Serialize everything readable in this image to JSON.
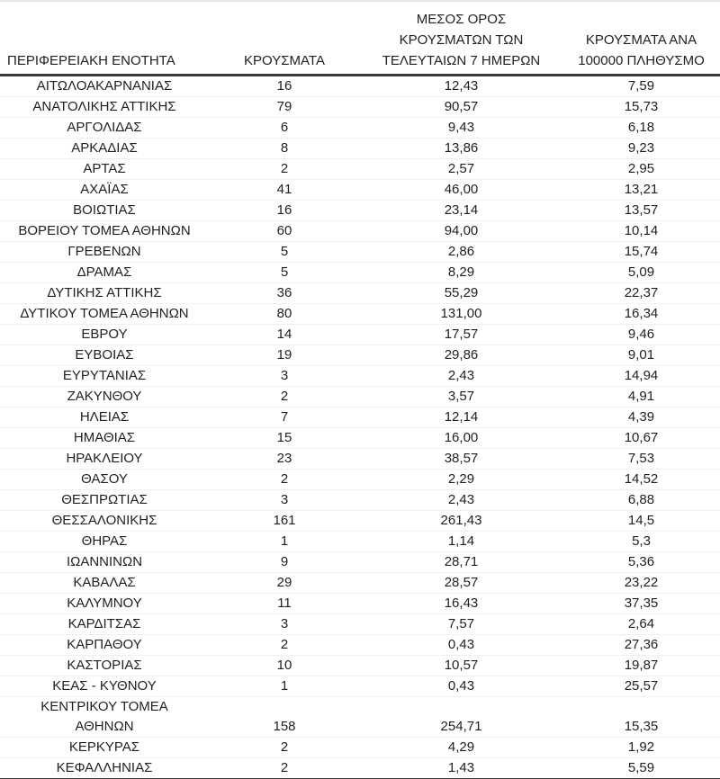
{
  "chart_data": {
    "type": "table",
    "columns": [
      {
        "id": "region",
        "label": "ΠΕΡΙΦΕΡΕΙΑΚΗ ΕΝΟΤΗΤΑ",
        "header_lines": [
          "ΠΕΡΙΦΕΡΕΙΑΚΗ ΕΝΟΤΗΤΑ"
        ]
      },
      {
        "id": "cases",
        "label": "ΚΡΟΥΣΜΑΤΑ",
        "header_lines": [
          "ΚΡΟΥΣΜΑΤΑ"
        ]
      },
      {
        "id": "avg7",
        "label": "ΜΕΣΟΣ ΟΡΟΣ ΚΡΟΥΣΜΑΤΩΝ ΤΩΝ ΤΕΛΕΥΤΑΙΩΝ 7 ΗΜΕΡΩΝ",
        "header_lines": [
          "ΜΕΣΟΣ ΟΡΟΣ",
          "ΚΡΟΥΣΜΑΤΩΝ ΤΩΝ",
          "ΤΕΛΕΥΤΑΙΩΝ 7 ΗΜΕΡΩΝ"
        ]
      },
      {
        "id": "per100k",
        "label": "ΚΡΟΥΣΜΑΤΑ ΑΝΑ 100000 ΠΛΗΘΥΣΜΟ",
        "header_lines": [
          "ΚΡΟΥΣΜΑΤΑ ΑΝΑ",
          "100000 ΠΛΗΘΥΣΜΟ"
        ]
      }
    ],
    "rows": [
      {
        "region": "ΑΙΤΩΛΟΑΚΑΡΝΑΝΙΑΣ",
        "cases": "16",
        "avg7": "12,43",
        "per100k": "7,59"
      },
      {
        "region": "ΑΝΑΤΟΛΙΚΗΣ ΑΤΤΙΚΗΣ",
        "cases": "79",
        "avg7": "90,57",
        "per100k": "15,73"
      },
      {
        "region": "ΑΡΓΟΛΙΔΑΣ",
        "cases": "6",
        "avg7": "9,43",
        "per100k": "6,18"
      },
      {
        "region": "ΑΡΚΑΔΙΑΣ",
        "cases": "8",
        "avg7": "13,86",
        "per100k": "9,23"
      },
      {
        "region": "ΑΡΤΑΣ",
        "cases": "2",
        "avg7": "2,57",
        "per100k": "2,95"
      },
      {
        "region": "ΑΧΑΪΑΣ",
        "cases": "41",
        "avg7": "46,00",
        "per100k": "13,21"
      },
      {
        "region": "ΒΟΙΩΤΙΑΣ",
        "cases": "16",
        "avg7": "23,14",
        "per100k": "13,57"
      },
      {
        "region": "ΒΟΡΕΙΟΥ ΤΟΜΕΑ ΑΘΗΝΩΝ",
        "cases": "60",
        "avg7": "94,00",
        "per100k": "10,14"
      },
      {
        "region": "ΓΡΕΒΕΝΩΝ",
        "cases": "5",
        "avg7": "2,86",
        "per100k": "15,74"
      },
      {
        "region": "ΔΡΑΜΑΣ",
        "cases": "5",
        "avg7": "8,29",
        "per100k": "5,09"
      },
      {
        "region": "ΔΥΤΙΚΗΣ ΑΤΤΙΚΗΣ",
        "cases": "36",
        "avg7": "55,29",
        "per100k": "22,37"
      },
      {
        "region": "ΔΥΤΙΚΟΥ ΤΟΜΕΑ ΑΘΗΝΩΝ",
        "cases": "80",
        "avg7": "131,00",
        "per100k": "16,34"
      },
      {
        "region": "ΕΒΡΟΥ",
        "cases": "14",
        "avg7": "17,57",
        "per100k": "9,46"
      },
      {
        "region": "ΕΥΒΟΙΑΣ",
        "cases": "19",
        "avg7": "29,86",
        "per100k": "9,01"
      },
      {
        "region": "ΕΥΡΥΤΑΝΙΑΣ",
        "cases": "3",
        "avg7": "2,43",
        "per100k": "14,94"
      },
      {
        "region": "ΖΑΚΥΝΘΟΥ",
        "cases": "2",
        "avg7": "3,57",
        "per100k": "4,91"
      },
      {
        "region": "ΗΛΕΙΑΣ",
        "cases": "7",
        "avg7": "12,14",
        "per100k": "4,39"
      },
      {
        "region": "ΗΜΑΘΙΑΣ",
        "cases": "15",
        "avg7": "16,00",
        "per100k": "10,67"
      },
      {
        "region": "ΗΡΑΚΛΕΙΟΥ",
        "cases": "23",
        "avg7": "38,57",
        "per100k": "7,53"
      },
      {
        "region": "ΘΑΣΟΥ",
        "cases": "2",
        "avg7": "2,29",
        "per100k": "14,52"
      },
      {
        "region": "ΘΕΣΠΡΩΤΙΑΣ",
        "cases": "3",
        "avg7": "2,43",
        "per100k": "6,88"
      },
      {
        "region": "ΘΕΣΣΑΛΟΝΙΚΗΣ",
        "cases": "161",
        "avg7": "261,43",
        "per100k": "14,5"
      },
      {
        "region": "ΘΗΡΑΣ",
        "cases": "1",
        "avg7": "1,14",
        "per100k": "5,3"
      },
      {
        "region": "ΙΩΑΝΝΙΝΩΝ",
        "cases": "9",
        "avg7": "28,71",
        "per100k": "5,36"
      },
      {
        "region": "ΚΑΒΑΛΑΣ",
        "cases": "29",
        "avg7": "28,57",
        "per100k": "23,22"
      },
      {
        "region": "ΚΑΛΥΜΝΟΥ",
        "cases": "11",
        "avg7": "16,43",
        "per100k": "37,35"
      },
      {
        "region": "ΚΑΡΔΙΤΣΑΣ",
        "cases": "3",
        "avg7": "7,57",
        "per100k": "2,64"
      },
      {
        "region": "ΚΑΡΠΑΘΟΥ",
        "cases": "2",
        "avg7": "0,43",
        "per100k": "27,36"
      },
      {
        "region": "ΚΑΣΤΟΡΙΑΣ",
        "cases": "10",
        "avg7": "10,57",
        "per100k": "19,87"
      },
      {
        "region": "ΚΕΑΣ - ΚΥΘΝΟΥ",
        "cases": "1",
        "avg7": "0,43",
        "per100k": "25,57"
      },
      {
        "region": "ΚΕΝΤΡΙΚΟΥ ΤΟΜΕΑ ΑΘΗΝΩΝ",
        "region_lines": [
          "ΚΕΝΤΡΙΚΟΥ ΤΟΜΕΑ",
          "ΑΘΗΝΩΝ"
        ],
        "cases": "158",
        "avg7": "254,71",
        "per100k": "15,35"
      },
      {
        "region": "ΚΕΡΚΥΡΑΣ",
        "cases": "2",
        "avg7": "4,29",
        "per100k": "1,92"
      },
      {
        "region": "ΚΕΦΑΛΛΗΝΙΑΣ",
        "cases": "2",
        "avg7": "1,43",
        "per100k": "5,59"
      }
    ]
  }
}
